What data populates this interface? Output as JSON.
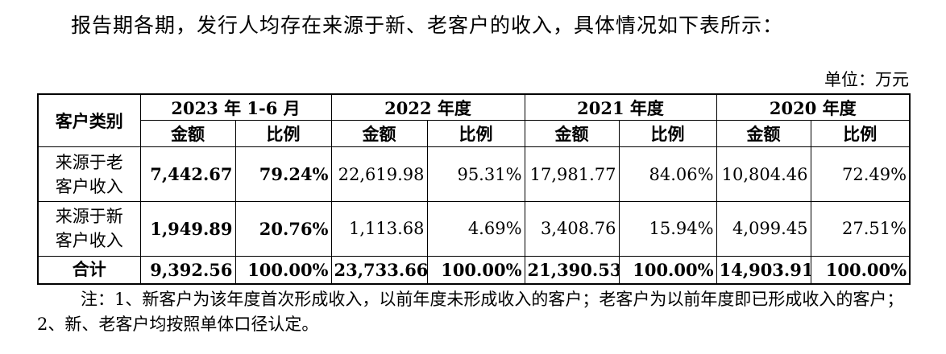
{
  "intro": "报告期各期，发行人均存在来源于新、老客户的收入，具体情况如下表所示：",
  "unit": "单位：万元",
  "table": {
    "category_header": "客户类别",
    "periods": [
      "2023 年 1-6 月",
      "2022 年度",
      "2021 年度",
      "2020 年度"
    ],
    "sub_headers": [
      "金额",
      "比例",
      "金额",
      "比例",
      "金额",
      "比例",
      "金额",
      "比例"
    ],
    "rows": [
      {
        "label": "来源于老客户收入",
        "label_line1": "来源于老",
        "label_line2": "客户收入",
        "cells": [
          "7,442.67",
          "79.24%",
          "22,619.98",
          "95.31%",
          "17,981.77",
          "84.06%",
          "10,804.46",
          "72.49%"
        ]
      },
      {
        "label": "来源于新客户收入",
        "label_line1": "来源于新",
        "label_line2": "客户收入",
        "cells": [
          "1,949.89",
          "20.76%",
          "1,113.68",
          "4.69%",
          "3,408.76",
          "15.94%",
          "4,099.45",
          "27.51%"
        ]
      },
      {
        "label": "合计",
        "cells": [
          "9,392.56",
          "100.00%",
          "23,733.66",
          "100.00%",
          "21,390.53",
          "100.00%",
          "14,903.91",
          "100.00%"
        ]
      }
    ]
  },
  "note": "注：1、新客户为该年度首次形成收入，以前年度未形成收入的客户；老客户为以前年度即已形成收入的客户；2、新、老客户均按照单体口径认定。"
}
